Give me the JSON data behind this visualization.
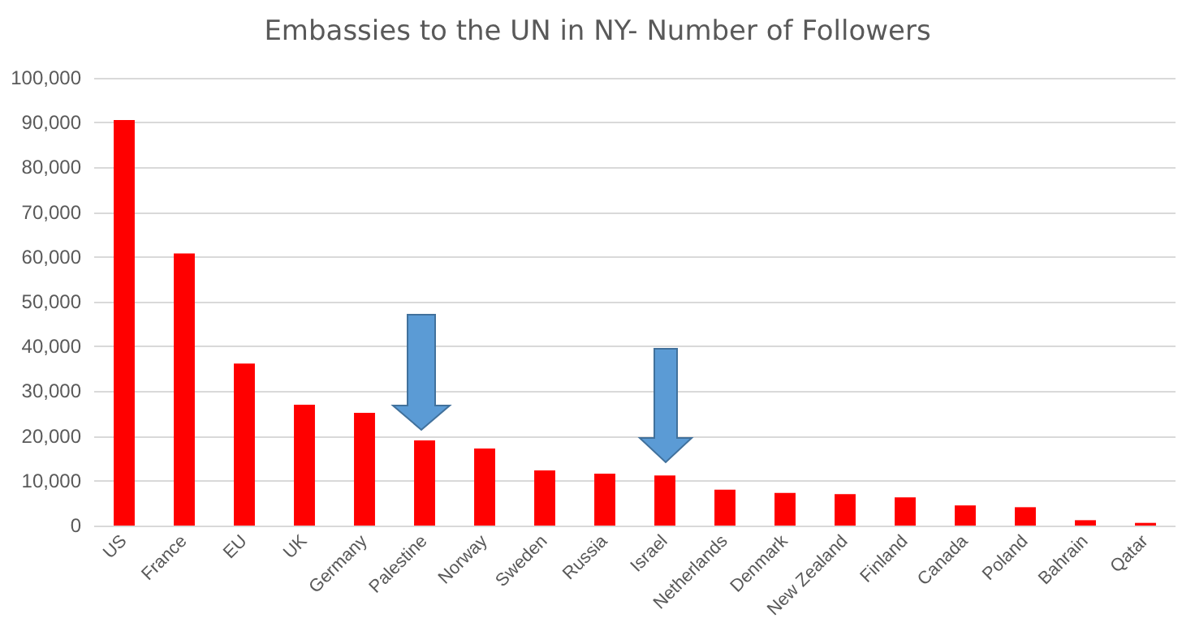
{
  "chart_data": {
    "type": "bar",
    "title": "Embassies to the UN in NY- Number of Followers",
    "categories": [
      "US",
      "France",
      "EU",
      "UK",
      "Germany",
      "Palestine",
      "Norway",
      "Sweden",
      "Russia",
      "Israel",
      "Netherlands",
      "Denmark",
      "New Zealand",
      "Finland",
      "Canada",
      "Poland",
      "Bahrain",
      "Qatar"
    ],
    "values": [
      90600,
      60800,
      36200,
      27000,
      25200,
      19000,
      17200,
      12300,
      11600,
      11200,
      8000,
      7300,
      7000,
      6300,
      4500,
      4100,
      1200,
      600
    ],
    "color": "#ff0000",
    "ylim": [
      0,
      100000
    ],
    "yticks": [
      0,
      {
        "value": 10000,
        "label": "10,000"
      },
      {
        "value": 20000,
        "label": "20,000"
      },
      {
        "value": 30000,
        "label": "30,000"
      },
      {
        "value": 40000,
        "label": "40,000"
      },
      {
        "value": 50000,
        "label": "50,000"
      },
      {
        "value": 60000,
        "label": "60,000"
      },
      {
        "value": 70000,
        "label": "70,000"
      },
      {
        "value": 80000,
        "label": "80,000"
      },
      {
        "value": 90000,
        "label": "90,000"
      },
      {
        "value": 100000,
        "label": "100,000"
      }
    ],
    "grid": "y"
  }
}
